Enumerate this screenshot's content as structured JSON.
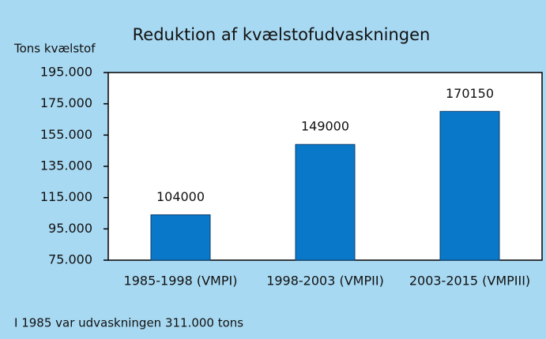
{
  "chart_data": {
    "type": "bar",
    "title": "Reduktion af kvælstofudvaskningen",
    "y_label": "Tons kvælstof",
    "annotation": "I 1985 var udvaskningen 311.000 tons",
    "categories": [
      "1985-1998 (VMPI)",
      "1998-2003 (VMPII)",
      "2003-2015 (VMPIII)"
    ],
    "values": [
      104000,
      149000,
      170150
    ],
    "color": "#0a78c8",
    "ylim": [
      75000,
      195000
    ],
    "yticks": [
      {
        "value": 75000,
        "label": "75.000"
      },
      {
        "value": 95000,
        "label": "95.000"
      },
      {
        "value": 115000,
        "label": "115.000"
      },
      {
        "value": 135000,
        "label": "135.000"
      },
      {
        "value": 155000,
        "label": "155.000"
      },
      {
        "value": 175000,
        "label": "175.000"
      },
      {
        "value": 195000,
        "label": "195.000"
      }
    ],
    "grid": false
  }
}
